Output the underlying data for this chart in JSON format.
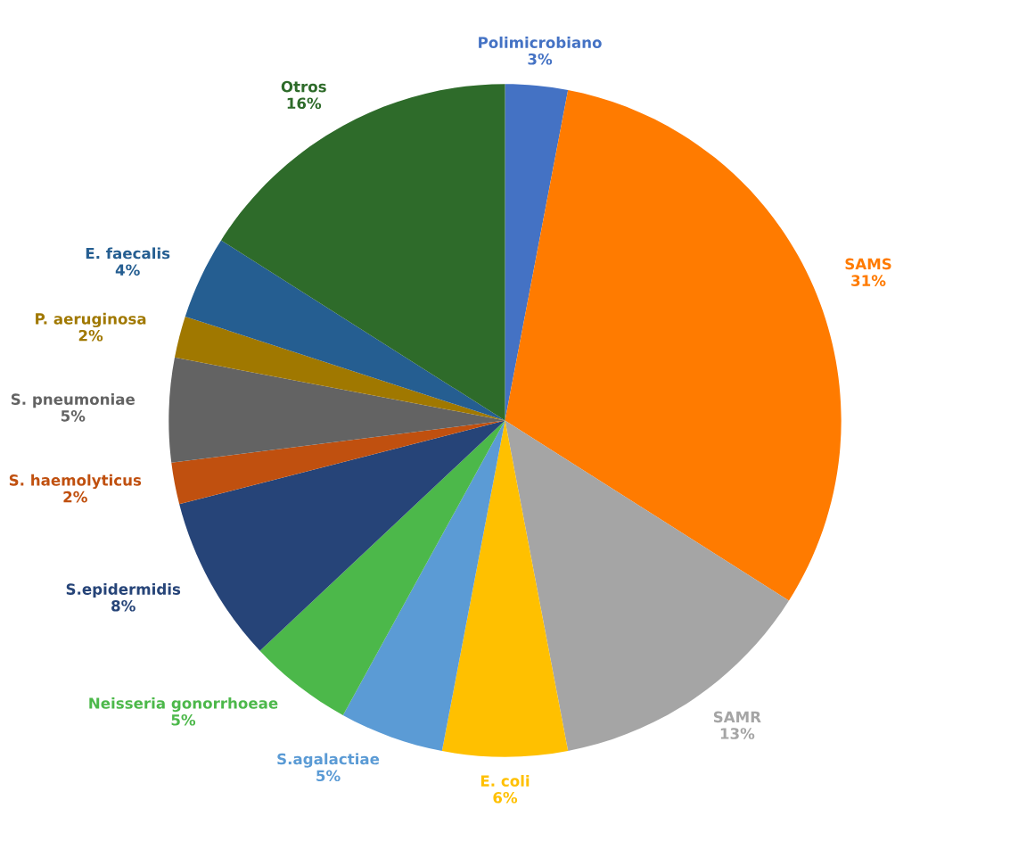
{
  "chart_data": {
    "type": "pie",
    "categories": [
      "Polimicrobiano",
      "SAMS",
      "SAMR",
      "E. coli",
      "S.agalactiae",
      "Neisseria gonorrhoeae",
      "S.epidermidis",
      "S. haemolyticus",
      "S. pneumoniae",
      "P. aeruginosa",
      "E. faecalis",
      "Otros"
    ],
    "values": [
      3,
      31,
      13,
      6,
      5,
      5,
      8,
      2,
      5,
      2,
      4,
      16
    ],
    "value_labels": [
      "3%",
      "31%",
      "13%",
      "6%",
      "5%",
      "5%",
      "8%",
      "2%",
      "5%",
      "2%",
      "4%",
      "16%"
    ],
    "colors": [
      "#4472c4",
      "#ff7b00",
      "#a5a5a5",
      "#ffc000",
      "#5b9bd5",
      "#4cb84a",
      "#264478",
      "#c0500f",
      "#636363",
      "#a07800",
      "#255e91",
      "#2e6b2a"
    ]
  }
}
